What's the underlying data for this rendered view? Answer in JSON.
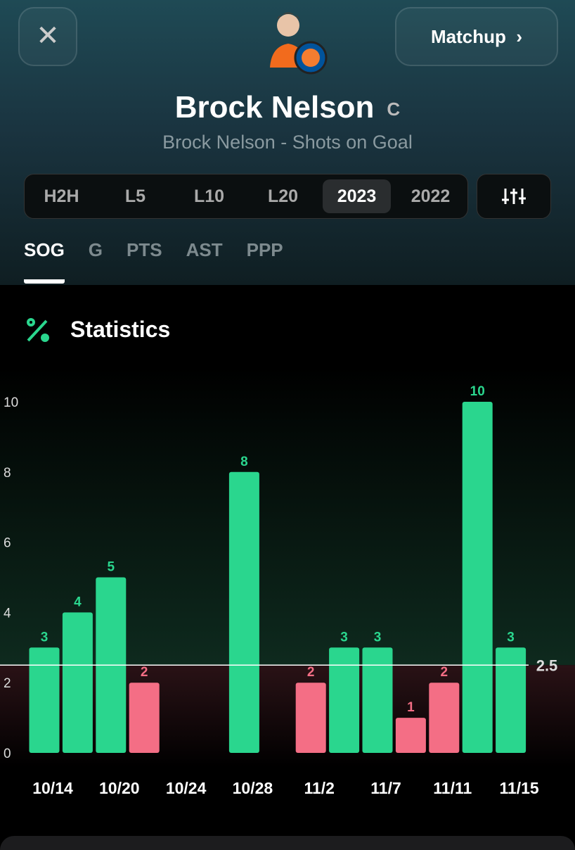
{
  "header": {
    "player_name": "Brock Nelson",
    "position": "C",
    "subtitle": "Brock Nelson - Shots on Goal",
    "matchup_button": "Matchup"
  },
  "period_tabs": {
    "items": [
      "H2H",
      "L5",
      "L10",
      "L20",
      "2023",
      "2022"
    ],
    "active": 4
  },
  "stat_tabs": {
    "items": [
      "SOG",
      "G",
      "PTS",
      "AST",
      "PPP"
    ],
    "active": 0
  },
  "section_title": "Statistics",
  "chart_data": {
    "type": "bar",
    "categories": [
      "10/14",
      null,
      "10/20",
      null,
      "10/24",
      null,
      "10/28",
      null,
      "11/2",
      null,
      "11/7",
      null,
      "11/11",
      null,
      "11/15"
    ],
    "values": [
      3,
      4,
      5,
      2,
      null,
      null,
      8,
      null,
      2,
      3,
      3,
      1,
      2,
      10,
      3
    ],
    "threshold": 2.5,
    "over_color": "#2ad68e",
    "under_color": "#f46e85",
    "ylim": [
      0,
      10
    ],
    "yticks": [
      0,
      2,
      4,
      6,
      8,
      10
    ]
  }
}
